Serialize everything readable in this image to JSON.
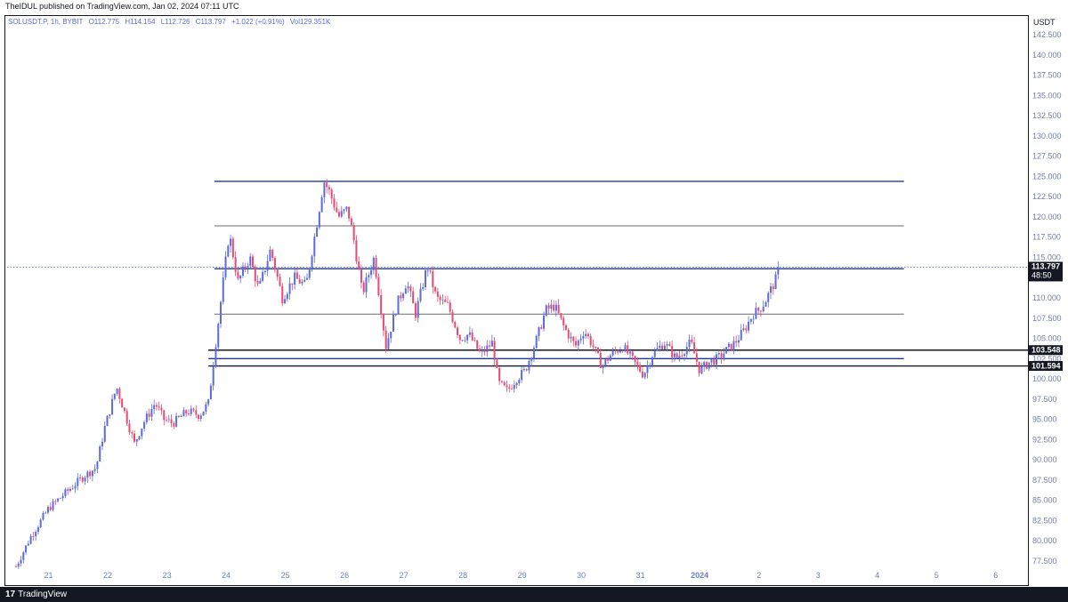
{
  "header": {
    "published_by": "TheIDUL published on TradingView.com, Jan 02, 2024 07:11 UTC"
  },
  "symbol": {
    "name": "SOLUSDT.P, 1h, BYBIT",
    "open": "O112.775",
    "high": "H114.154",
    "low": "L112.726",
    "close": "C113.797",
    "change": "+1.022 (+0.91%)",
    "volume": "Vol129.351K"
  },
  "axis_unit": "USDT",
  "price_labels": {
    "current": "113.797",
    "countdown": "48:50",
    "level_high": "103.548",
    "level_low": "101.594"
  },
  "footer": {
    "logo_mark": "17",
    "logo_text": "TradingView"
  },
  "colors": {
    "up": "#5b6be0",
    "down": "#e84a72",
    "level_blue": "#1f3a93",
    "level_gray": "#6b6b6b",
    "label_bg": "#131722"
  },
  "chart_data": {
    "type": "candlestick",
    "title": "",
    "xlabel": "",
    "ylabel": "",
    "ylim": [
      76.5,
      143.5
    ],
    "y_ticks": [
      "142.500",
      "140.000",
      "137.500",
      "135.000",
      "132.500",
      "130.000",
      "127.500",
      "125.000",
      "122.500",
      "120.000",
      "117.500",
      "115.000",
      "112.500",
      "110.000",
      "107.500",
      "105.000",
      "102.500",
      "100.000",
      "97.500",
      "95.000",
      "92.500",
      "90.000",
      "87.500",
      "85.000",
      "82.500",
      "80.000",
      "77.500"
    ],
    "x_ticks": [
      "21",
      "22",
      "23",
      "24",
      "25",
      "26",
      "27",
      "28",
      "29",
      "30",
      "31",
      "2024",
      "2",
      "3",
      "4",
      "5",
      "6"
    ],
    "x_tick_day_index": [
      0,
      1,
      2,
      3,
      4,
      5,
      6,
      7,
      8,
      9,
      10,
      11,
      12,
      13,
      14,
      15,
      16
    ],
    "x_start": -0.7,
    "x_end": 16.5,
    "current_price": 113.797,
    "horizontal_levels": [
      {
        "price": 124.4,
        "from_day": 2.8,
        "to_day": 14.45,
        "color": "blue"
      },
      {
        "price": 118.9,
        "from_day": 2.8,
        "to_day": 14.45,
        "color": "gray"
      },
      {
        "price": 113.6,
        "from_day": 2.8,
        "to_day": 14.45,
        "color": "blue"
      },
      {
        "price": 108.0,
        "from_day": 2.8,
        "to_day": 14.45,
        "color": "gray"
      },
      {
        "price": 103.548,
        "from_day": 2.7,
        "to_day": 16.5,
        "color": "dark"
      },
      {
        "price": 102.5,
        "from_day": 2.7,
        "to_day": 14.45,
        "color": "blue"
      },
      {
        "price": 101.594,
        "from_day": 2.7,
        "to_day": 16.5,
        "color": "dark"
      }
    ],
    "price_path": [
      [
        -0.55,
        76.8
      ],
      [
        -0.3,
        80.5
      ],
      [
        0.0,
        84.0
      ],
      [
        0.3,
        86.0
      ],
      [
        0.6,
        88.0
      ],
      [
        0.8,
        89.0
      ],
      [
        0.95,
        94.0
      ],
      [
        1.15,
        99.0
      ],
      [
        1.3,
        95.5
      ],
      [
        1.45,
        92.0
      ],
      [
        1.6,
        94.5
      ],
      [
        1.8,
        97.0
      ],
      [
        1.95,
        95.0
      ],
      [
        2.1,
        94.5
      ],
      [
        2.35,
        96.0
      ],
      [
        2.55,
        95.5
      ],
      [
        2.7,
        97.0
      ],
      [
        2.8,
        103.0
      ],
      [
        2.9,
        109.0
      ],
      [
        3.05,
        118.0
      ],
      [
        3.2,
        112.0
      ],
      [
        3.4,
        115.0
      ],
      [
        3.55,
        111.0
      ],
      [
        3.75,
        116.0
      ],
      [
        3.95,
        110.0
      ],
      [
        4.15,
        112.5
      ],
      [
        4.35,
        111.5
      ],
      [
        4.55,
        120.0
      ],
      [
        4.65,
        124.5
      ],
      [
        4.75,
        123.0
      ],
      [
        4.9,
        120.0
      ],
      [
        5.05,
        121.0
      ],
      [
        5.15,
        117.5
      ],
      [
        5.3,
        110.5
      ],
      [
        5.5,
        115.0
      ],
      [
        5.7,
        104.0
      ],
      [
        5.9,
        109.5
      ],
      [
        6.05,
        112.0
      ],
      [
        6.2,
        108.0
      ],
      [
        6.4,
        114.0
      ],
      [
        6.55,
        110.0
      ],
      [
        6.75,
        109.0
      ],
      [
        6.95,
        105.0
      ],
      [
        7.1,
        105.5
      ],
      [
        7.3,
        103.0
      ],
      [
        7.5,
        104.5
      ],
      [
        7.6,
        99.5
      ],
      [
        7.75,
        98.5
      ],
      [
        7.9,
        100.0
      ],
      [
        8.05,
        101.0
      ],
      [
        8.25,
        105.0
      ],
      [
        8.4,
        108.5
      ],
      [
        8.55,
        109.0
      ],
      [
        8.7,
        106.5
      ],
      [
        8.9,
        104.0
      ],
      [
        9.05,
        106.0
      ],
      [
        9.2,
        104.0
      ],
      [
        9.35,
        101.5
      ],
      [
        9.5,
        103.0
      ],
      [
        9.7,
        104.0
      ],
      [
        9.9,
        102.0
      ],
      [
        10.05,
        100.5
      ],
      [
        10.2,
        103.0
      ],
      [
        10.4,
        104.5
      ],
      [
        10.6,
        102.5
      ],
      [
        10.85,
        104.5
      ],
      [
        11.0,
        101.0
      ],
      [
        11.15,
        102.0
      ],
      [
        11.3,
        102.5
      ],
      [
        11.45,
        103.5
      ],
      [
        11.6,
        104.5
      ],
      [
        11.75,
        106.0
      ],
      [
        11.9,
        108.0
      ],
      [
        12.0,
        108.5
      ],
      [
        12.1,
        109.5
      ],
      [
        12.2,
        111.0
      ],
      [
        12.3,
        112.5
      ],
      [
        12.35,
        113.797
      ]
    ]
  }
}
